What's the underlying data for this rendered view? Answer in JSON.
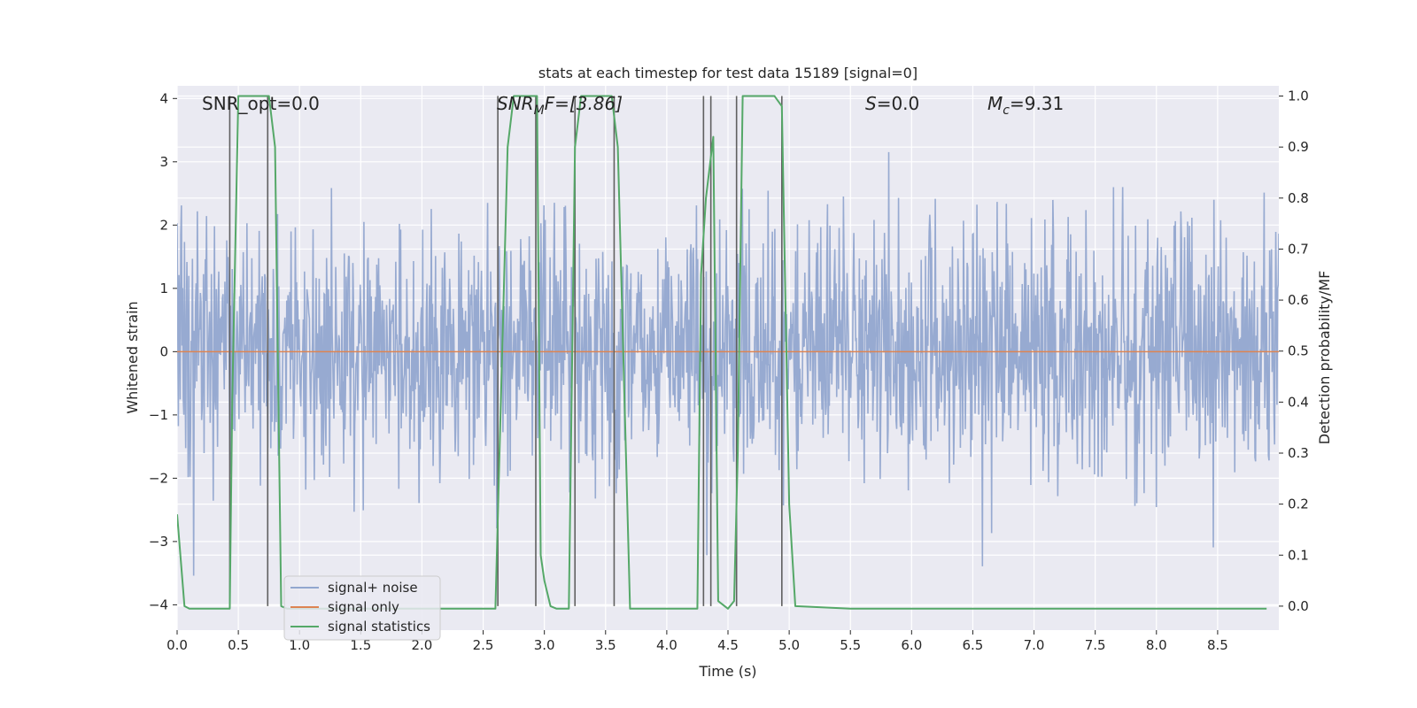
{
  "chart_data": {
    "type": "line",
    "title": "stats at each timestep for test data 15189 [signal=0]",
    "xlabel": "Time (s)",
    "ylabel_left": "Whitened strain",
    "ylabel_right": "Detection probability/MF",
    "xlim": [
      0.0,
      9.0
    ],
    "ylim_left": [
      -4.4,
      4.2
    ],
    "ylim_right": [
      -0.047,
      1.02
    ],
    "x_ticks": [
      "0.0",
      "0.5",
      "1.0",
      "1.5",
      "2.0",
      "2.5",
      "3.0",
      "3.5",
      "4.0",
      "4.5",
      "5.0",
      "5.5",
      "6.0",
      "6.5",
      "7.0",
      "7.5",
      "8.0",
      "8.5"
    ],
    "y_ticks_left": [
      "−4",
      "−3",
      "−2",
      "−1",
      "0",
      "1",
      "2",
      "3",
      "4"
    ],
    "y_ticks_right": [
      "0.0",
      "0.1",
      "0.2",
      "0.3",
      "0.4",
      "0.5",
      "0.6",
      "0.7",
      "0.8",
      "0.9",
      "1.0"
    ],
    "annotations": {
      "snr_opt": "SNR_opt=0.0",
      "snr_mf_main": "SNR",
      "snr_mf_sub": "M",
      "snr_mf_tail": "F=[3.86]",
      "s_main": "S",
      "s_tail": "=0.0",
      "mc_main": "M",
      "mc_sub": "c",
      "mc_tail": "=9.31"
    },
    "legend": {
      "placement": "lower-left",
      "entries": [
        "signal+ noise",
        "signal only",
        "signal statistics"
      ]
    },
    "colors": {
      "noise": "#92a7cf",
      "signal": "#dd8452",
      "stats": "#55a868",
      "vline": "#606060",
      "background": "#eaeaf2"
    },
    "series": [
      {
        "name": "signal statistics",
        "axis": "right",
        "x": [
          0.0,
          0.06,
          0.1,
          0.2,
          0.3,
          0.43,
          0.45,
          0.5,
          0.55,
          0.6,
          0.65,
          0.7,
          0.75,
          0.8,
          0.85,
          0.9,
          1.0,
          1.5,
          2.0,
          2.5,
          2.6,
          2.65,
          2.7,
          2.75,
          2.8,
          2.85,
          2.9,
          2.94,
          2.97,
          3.0,
          3.05,
          3.1,
          3.2,
          3.25,
          3.3,
          3.35,
          3.4,
          3.5,
          3.55,
          3.6,
          3.7,
          4.0,
          4.2,
          4.25,
          4.28,
          4.32,
          4.38,
          4.42,
          4.5,
          4.55,
          4.58,
          4.62,
          4.7,
          4.8,
          4.88,
          4.94,
          5.0,
          5.05,
          5.5,
          6.0,
          6.5,
          7.0,
          7.5,
          8.0,
          8.5,
          8.9
        ],
        "values": [
          0.18,
          0.0,
          -0.005,
          -0.005,
          -0.005,
          -0.005,
          0.4,
          1.0,
          1.0,
          1.0,
          1.0,
          1.0,
          1.0,
          0.9,
          0.0,
          -0.005,
          -0.005,
          -0.005,
          -0.005,
          -0.005,
          -0.005,
          0.45,
          0.9,
          1.0,
          1.0,
          1.0,
          1.0,
          1.0,
          0.1,
          0.05,
          0.0,
          -0.005,
          -0.005,
          0.9,
          1.0,
          1.0,
          1.0,
          1.0,
          1.0,
          0.9,
          -0.005,
          -0.005,
          -0.005,
          -0.005,
          0.65,
          0.8,
          0.92,
          0.01,
          -0.005,
          0.01,
          0.3,
          1.0,
          1.0,
          1.0,
          1.0,
          0.98,
          0.2,
          0.0,
          -0.005,
          -0.005,
          -0.005,
          -0.005,
          -0.005,
          -0.005,
          -0.005,
          -0.005
        ]
      },
      {
        "name": "signal only",
        "axis": "left",
        "x": [
          0.0,
          9.0
        ],
        "values": [
          0.0,
          0.0
        ]
      },
      {
        "name": "signal+ noise",
        "axis": "left",
        "x_range": [
          0.0,
          9.0
        ],
        "seed": 15189,
        "points": 1800,
        "sigma": 1.0,
        "description_of_values": "white Gaussian noise samples in whitened-strain units"
      }
    ],
    "vlines_x": [
      0.43,
      0.74,
      2.62,
      2.93,
      3.25,
      3.57,
      4.3,
      4.36,
      4.57,
      4.94
    ]
  }
}
